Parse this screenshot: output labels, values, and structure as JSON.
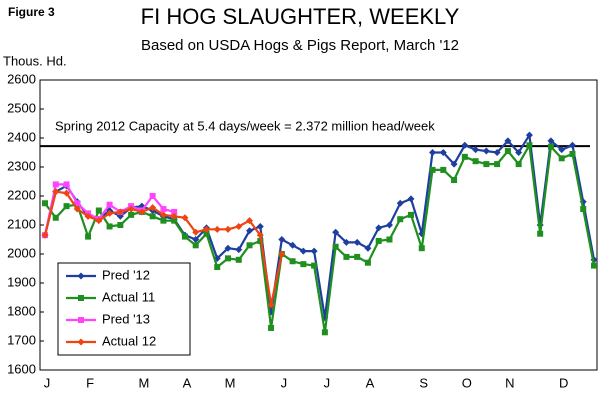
{
  "chart_data": {
    "type": "line",
    "figure_label": "Figure 3",
    "title": "FI HOG SLAUGHTER, WEEKLY",
    "subtitle": "Based on USDA Hogs & Pigs Report, March '12",
    "y_label": "Thous. Hd.",
    "categories": [
      "J",
      null,
      null,
      null,
      "F",
      null,
      null,
      null,
      null,
      "M",
      null,
      null,
      null,
      "A",
      null,
      null,
      null,
      "M",
      null,
      null,
      null,
      null,
      "J",
      null,
      null,
      null,
      "J",
      null,
      null,
      null,
      "A",
      null,
      null,
      null,
      null,
      "S",
      null,
      null,
      null,
      "O",
      null,
      null,
      null,
      "N",
      null,
      null,
      null,
      null,
      "D",
      null,
      null,
      null
    ],
    "ylim": [
      1600,
      2600
    ],
    "yticks": [
      1600,
      1700,
      1800,
      1900,
      2000,
      2100,
      2200,
      2300,
      2400,
      2500,
      2600
    ],
    "grid": false,
    "annotation_line": {
      "value": 2372,
      "label": "Spring 2012 Capacity at 5.4 days/week = 2.372 million head/week"
    },
    "series": [
      {
        "name": "Pred '12",
        "color": "#1f3f9f",
        "marker": "diamond",
        "values": [
          2065,
          2215,
          2235,
          2180,
          2130,
          2120,
          2150,
          2130,
          2160,
          2165,
          2150,
          2130,
          2120,
          2065,
          2050,
          2090,
          1985,
          2020,
          2015,
          2080,
          2095,
          1800,
          2050,
          2030,
          2010,
          2010,
          1780,
          2075,
          2040,
          2040,
          2020,
          2090,
          2100,
          2175,
          2190,
          2070,
          2350,
          2350,
          2310,
          2375,
          2360,
          2355,
          2350,
          2390,
          2350,
          2410,
          2100,
          2390,
          2360,
          2375,
          2180,
          1980
        ]
      },
      {
        "name": "Actual 11",
        "color": "#1f8f1f",
        "marker": "square",
        "values": [
          2175,
          2125,
          2165,
          2170,
          2060,
          2150,
          2095,
          2100,
          2135,
          2145,
          2130,
          2115,
          2115,
          2060,
          2030,
          2070,
          1955,
          1985,
          1980,
          2030,
          2045,
          1745,
          2000,
          1975,
          1965,
          1960,
          1730,
          2025,
          1990,
          1990,
          1970,
          2045,
          2050,
          2120,
          2135,
          2020,
          2290,
          2290,
          2255,
          2335,
          2320,
          2310,
          2310,
          2355,
          2310,
          2375,
          2070,
          2370,
          2330,
          2345,
          2155,
          1960
        ]
      },
      {
        "name": "Pred '13",
        "color": "#ff44ff",
        "marker": "square",
        "values": [
          2065,
          2240,
          2240,
          2175,
          2140,
          2120,
          2170,
          2145,
          2165,
          2150,
          2200,
          2155,
          2145,
          null,
          null,
          null,
          null,
          null,
          null,
          null,
          null,
          null,
          null,
          null,
          null,
          null,
          null,
          null,
          null,
          null,
          null,
          null,
          null,
          null,
          null,
          null,
          null,
          null,
          null,
          null,
          null,
          null,
          null,
          null,
          null,
          null,
          null,
          null,
          null,
          null,
          null,
          null
        ]
      },
      {
        "name": "Actual 12",
        "color": "#ee4411",
        "marker": "diamond",
        "values": [
          2065,
          2215,
          2210,
          2155,
          2130,
          2115,
          2140,
          2145,
          2155,
          2145,
          2160,
          2135,
          2130,
          2125,
          2075,
          2085,
          2085,
          2085,
          2095,
          2115,
          2065,
          1825,
          2000,
          null,
          null,
          null,
          null,
          null,
          null,
          null,
          null,
          null,
          null,
          null,
          null,
          null,
          null,
          null,
          null,
          null,
          null,
          null,
          null,
          null,
          null,
          null,
          null,
          null,
          null,
          null,
          null,
          null
        ]
      }
    ]
  }
}
